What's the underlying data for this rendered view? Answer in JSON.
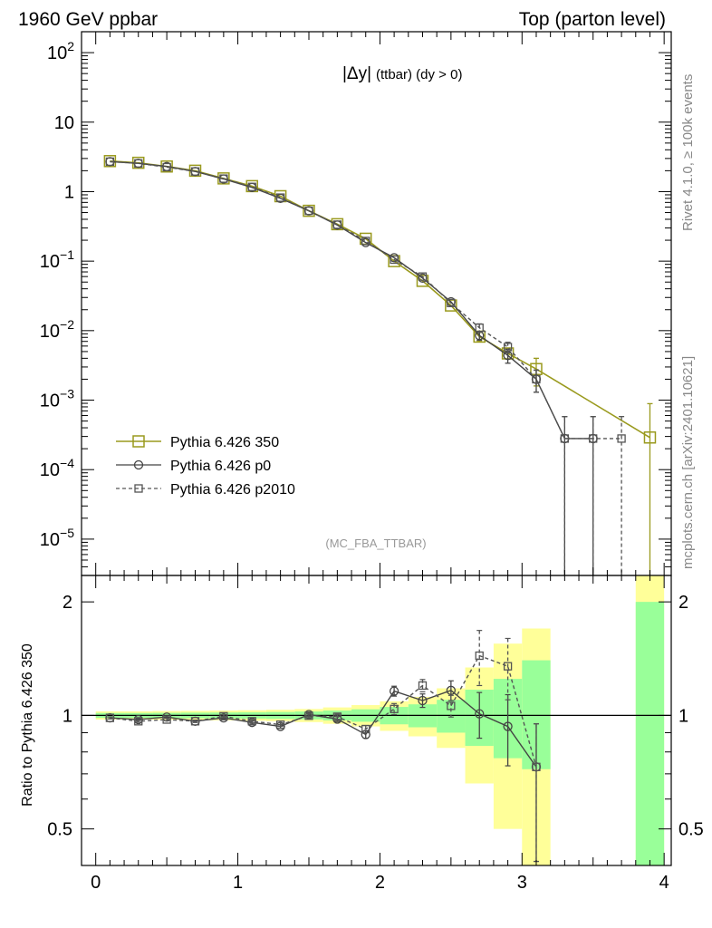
{
  "header": {
    "left": "1960 GeV ppbar",
    "right": "Top (parton level)"
  },
  "side_labels": {
    "rivet": "Rivet 4.1.0, ≥ 100k events",
    "mcplots": "mcplots.cern.ch [arXiv:2401.10621]"
  },
  "plot_title": {
    "main": "|Δy|",
    "sub": "(ttbar) (dy > 0)"
  },
  "analysis_tag": "(MC_FBA_TTBAR)",
  "colors": {
    "ref": "#9a9a1e",
    "p0": "#444444",
    "p2010": "#555555",
    "band_yellow": "#ffff99",
    "band_green": "#99ff99"
  },
  "chart_data": [
    {
      "type": "line",
      "panel": "main",
      "yscale": "log",
      "xlim": [
        -0.1,
        4.05
      ],
      "ylim": [
        3e-06,
        200
      ],
      "y_ticks": [
        {
          "value": 1e-05,
          "base": "10",
          "exp": "−5"
        },
        {
          "value": 0.0001,
          "base": "10",
          "exp": "−4"
        },
        {
          "value": 0.001,
          "base": "10",
          "exp": "−3"
        },
        {
          "value": 0.01,
          "base": "10",
          "exp": "−2"
        },
        {
          "value": 0.1,
          "base": "10",
          "exp": "−1"
        },
        {
          "value": 1,
          "base": "1",
          "exp": ""
        },
        {
          "value": 10,
          "base": "10",
          "exp": ""
        },
        {
          "value": 100,
          "base": "10",
          "exp": "2"
        }
      ],
      "legend": [
        {
          "key": "ref",
          "label": "Pythia 6.426 350"
        },
        {
          "key": "p0",
          "label": "Pythia 6.426 p0"
        },
        {
          "key": "p2010",
          "label": "Pythia 6.426 p2010"
        }
      ],
      "series": [
        {
          "key": "ref",
          "name": "Pythia 6.426 350",
          "x": [
            0.1,
            0.3,
            0.5,
            0.7,
            0.9,
            1.1,
            1.3,
            1.5,
            1.7,
            1.9,
            2.1,
            2.3,
            2.5,
            2.7,
            2.9,
            3.1,
            3.9
          ],
          "y": [
            2.75,
            2.6,
            2.3,
            2.0,
            1.55,
            1.2,
            0.86,
            0.53,
            0.34,
            0.21,
            0.1,
            0.052,
            0.023,
            0.0082,
            0.0047,
            0.0028,
            0.00029
          ],
          "err_hi": [
            null,
            null,
            null,
            null,
            null,
            null,
            null,
            null,
            null,
            null,
            null,
            null,
            null,
            0.0012,
            0.0008,
            0.0012,
            0.0006
          ],
          "err_lo": [
            null,
            null,
            null,
            null,
            null,
            null,
            null,
            null,
            null,
            null,
            null,
            null,
            null,
            0.0012,
            0.0008,
            0.0012,
            0.0006
          ]
        },
        {
          "key": "p0",
          "name": "Pythia 6.426 p0",
          "x": [
            0.1,
            0.3,
            0.5,
            0.7,
            0.9,
            1.1,
            1.3,
            1.5,
            1.7,
            1.9,
            2.1,
            2.3,
            2.5,
            2.7,
            2.9,
            3.1,
            3.3,
            3.5
          ],
          "y": [
            2.7,
            2.55,
            2.3,
            1.95,
            1.52,
            1.15,
            0.8,
            0.53,
            0.33,
            0.185,
            0.112,
            0.057,
            0.026,
            0.0085,
            0.0044,
            0.002,
            0.00028,
            0.00028
          ],
          "err_hi": [
            null,
            null,
            null,
            null,
            null,
            null,
            null,
            null,
            null,
            null,
            null,
            null,
            null,
            0.0012,
            0.001,
            0.0007,
            0.0003,
            0.0003
          ],
          "err_lo": [
            null,
            null,
            null,
            null,
            null,
            null,
            null,
            null,
            null,
            null,
            null,
            null,
            null,
            0.0012,
            0.001,
            0.0007,
            0.0003,
            0.0003
          ]
        },
        {
          "key": "p2010",
          "name": "Pythia 6.426 p2010",
          "x": [
            0.1,
            0.3,
            0.5,
            0.7,
            0.9,
            1.1,
            1.3,
            1.5,
            1.7,
            1.9,
            2.1,
            2.3,
            2.5,
            2.7,
            2.9,
            3.1,
            3.3,
            3.5,
            3.7
          ],
          "y": [
            2.7,
            2.55,
            2.25,
            1.95,
            1.54,
            1.17,
            0.82,
            0.53,
            0.335,
            0.195,
            0.105,
            0.06,
            0.025,
            0.011,
            0.0058,
            0.002,
            0.00028,
            0.00028,
            0.00028
          ],
          "err_hi": [
            null,
            null,
            null,
            null,
            null,
            null,
            null,
            null,
            null,
            null,
            null,
            null,
            null,
            0.0015,
            0.001,
            0.0007,
            0.0003,
            0.0003,
            0.0003
          ],
          "err_lo": [
            null,
            null,
            null,
            null,
            null,
            null,
            null,
            null,
            null,
            null,
            null,
            null,
            null,
            0.0015,
            0.001,
            0.0007,
            0.0003,
            0.0003,
            0.0003
          ]
        }
      ]
    },
    {
      "type": "line",
      "panel": "ratio",
      "yscale": "log",
      "ylabel": "Ratio to Pythia 6.426 350",
      "xlim": [
        -0.1,
        4.05
      ],
      "ylim": [
        0.4,
        2.35
      ],
      "y_ticks": [
        {
          "value": 0.5,
          "label": "0.5"
        },
        {
          "value": 1,
          "label": "1"
        },
        {
          "value": 2,
          "label": "2"
        }
      ],
      "x_ticks": [
        {
          "value": 0,
          "label": "0"
        },
        {
          "value": 1,
          "label": "1"
        },
        {
          "value": 2,
          "label": "2"
        },
        {
          "value": 3,
          "label": "3"
        },
        {
          "value": 4,
          "label": "4"
        }
      ],
      "bands": [
        {
          "x0": 0.0,
          "x1": 0.2,
          "yellow": [
            0.975,
            1.025
          ],
          "green": [
            0.985,
            1.015
          ]
        },
        {
          "x0": 0.2,
          "x1": 0.4,
          "yellow": [
            0.975,
            1.025
          ],
          "green": [
            0.985,
            1.015
          ]
        },
        {
          "x0": 0.4,
          "x1": 0.6,
          "yellow": [
            0.973,
            1.027
          ],
          "green": [
            0.984,
            1.016
          ]
        },
        {
          "x0": 0.6,
          "x1": 0.8,
          "yellow": [
            0.972,
            1.028
          ],
          "green": [
            0.983,
            1.017
          ]
        },
        {
          "x0": 0.8,
          "x1": 1.0,
          "yellow": [
            0.97,
            1.03
          ],
          "green": [
            0.982,
            1.018
          ]
        },
        {
          "x0": 1.0,
          "x1": 1.2,
          "yellow": [
            0.968,
            1.032
          ],
          "green": [
            0.981,
            1.019
          ]
        },
        {
          "x0": 1.2,
          "x1": 1.4,
          "yellow": [
            0.965,
            1.035
          ],
          "green": [
            0.979,
            1.021
          ]
        },
        {
          "x0": 1.4,
          "x1": 1.6,
          "yellow": [
            0.96,
            1.04
          ],
          "green": [
            0.976,
            1.024
          ]
        },
        {
          "x0": 1.6,
          "x1": 1.8,
          "yellow": [
            0.95,
            1.05
          ],
          "green": [
            0.97,
            1.03
          ]
        },
        {
          "x0": 1.8,
          "x1": 2.0,
          "yellow": [
            0.935,
            1.065
          ],
          "green": [
            0.962,
            1.038
          ]
        },
        {
          "x0": 2.0,
          "x1": 2.2,
          "yellow": [
            0.91,
            1.09
          ],
          "green": [
            0.947,
            1.053
          ]
        },
        {
          "x0": 2.2,
          "x1": 2.4,
          "yellow": [
            0.88,
            1.12
          ],
          "green": [
            0.93,
            1.07
          ]
        },
        {
          "x0": 2.4,
          "x1": 2.6,
          "yellow": [
            0.82,
            1.18
          ],
          "green": [
            0.9,
            1.1
          ]
        },
        {
          "x0": 2.6,
          "x1": 2.8,
          "yellow": [
            0.66,
            1.34
          ],
          "green": [
            0.83,
            1.17
          ]
        },
        {
          "x0": 2.8,
          "x1": 3.0,
          "yellow": [
            0.5,
            1.55
          ],
          "green": [
            0.77,
            1.25
          ]
        },
        {
          "x0": 3.0,
          "x1": 3.2,
          "yellow": [
            0.4,
            1.7
          ],
          "green": [
            0.72,
            1.4
          ]
        },
        {
          "x0": 3.8,
          "x1": 4.0,
          "yellow": [
            0.4,
            2.35
          ],
          "green": [
            0.4,
            2.0
          ]
        }
      ],
      "series": [
        {
          "key": "p0",
          "name": "Pythia 6.426 p0",
          "x": [
            0.1,
            0.3,
            0.5,
            0.7,
            0.9,
            1.1,
            1.3,
            1.5,
            1.7,
            1.9,
            2.1,
            2.3,
            2.5,
            2.7,
            2.9,
            3.1
          ],
          "y": [
            0.985,
            0.975,
            0.99,
            0.965,
            0.985,
            0.958,
            0.935,
            1.005,
            0.978,
            0.89,
            1.16,
            1.095,
            1.165,
            1.01,
            0.935,
            0.73
          ],
          "err_hi": [
            0.006,
            0.006,
            0.007,
            0.007,
            0.008,
            0.009,
            0.01,
            0.012,
            0.015,
            0.02,
            0.035,
            0.045,
            0.07,
            0.14,
            0.2,
            0.22
          ],
          "err_lo": [
            0.006,
            0.006,
            0.007,
            0.007,
            0.008,
            0.009,
            0.01,
            0.012,
            0.015,
            0.02,
            0.035,
            0.045,
            0.07,
            0.14,
            0.2,
            0.32
          ]
        },
        {
          "key": "p2010",
          "name": "Pythia 6.426 p2010",
          "x": [
            0.1,
            0.3,
            0.5,
            0.7,
            0.9,
            1.1,
            1.3,
            1.5,
            1.7,
            1.9,
            2.1,
            2.3,
            2.5,
            2.7,
            2.9,
            3.1
          ],
          "y": [
            0.985,
            0.965,
            0.975,
            0.965,
            0.995,
            0.965,
            0.945,
            0.998,
            0.992,
            0.92,
            1.04,
            1.2,
            1.06,
            1.44,
            1.35,
            0.73
          ],
          "err_hi": [
            0.006,
            0.006,
            0.007,
            0.007,
            0.008,
            0.009,
            0.01,
            0.012,
            0.015,
            0.02,
            0.035,
            0.045,
            0.07,
            0.24,
            0.25,
            0.22
          ],
          "err_lo": [
            0.006,
            0.006,
            0.007,
            0.007,
            0.008,
            0.009,
            0.01,
            0.012,
            0.015,
            0.02,
            0.035,
            0.045,
            0.07,
            0.24,
            0.25,
            0.32
          ]
        }
      ]
    }
  ]
}
